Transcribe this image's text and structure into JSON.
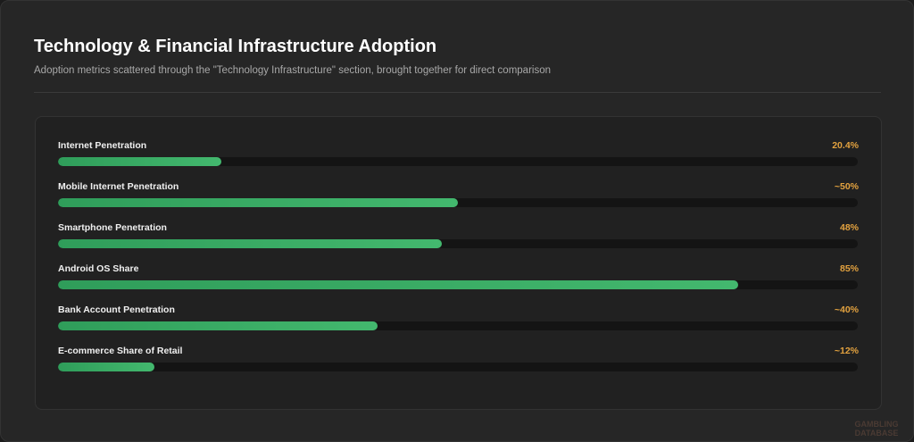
{
  "chart_data": {
    "type": "bar",
    "title": "Technology & Financial Infrastructure Adoption",
    "subtitle": "Adoption metrics scattered through the \"Technology Infrastructure\" section, brought together for direct comparison",
    "categories": [
      "Internet Penetration",
      "Mobile Internet Penetration",
      "Smartphone Penetration",
      "Android OS Share",
      "Bank Account Penetration",
      "E-commerce Share of Retail"
    ],
    "values": [
      20.4,
      50,
      48,
      85,
      40,
      12
    ],
    "value_labels": [
      "20.4%",
      "~50%",
      "48%",
      "85%",
      "~40%",
      "~12%"
    ],
    "xlim": [
      0,
      100
    ],
    "color": "#43b86e",
    "label_color": "#e3a23f"
  },
  "watermark": "GAMBLING DATABASE"
}
